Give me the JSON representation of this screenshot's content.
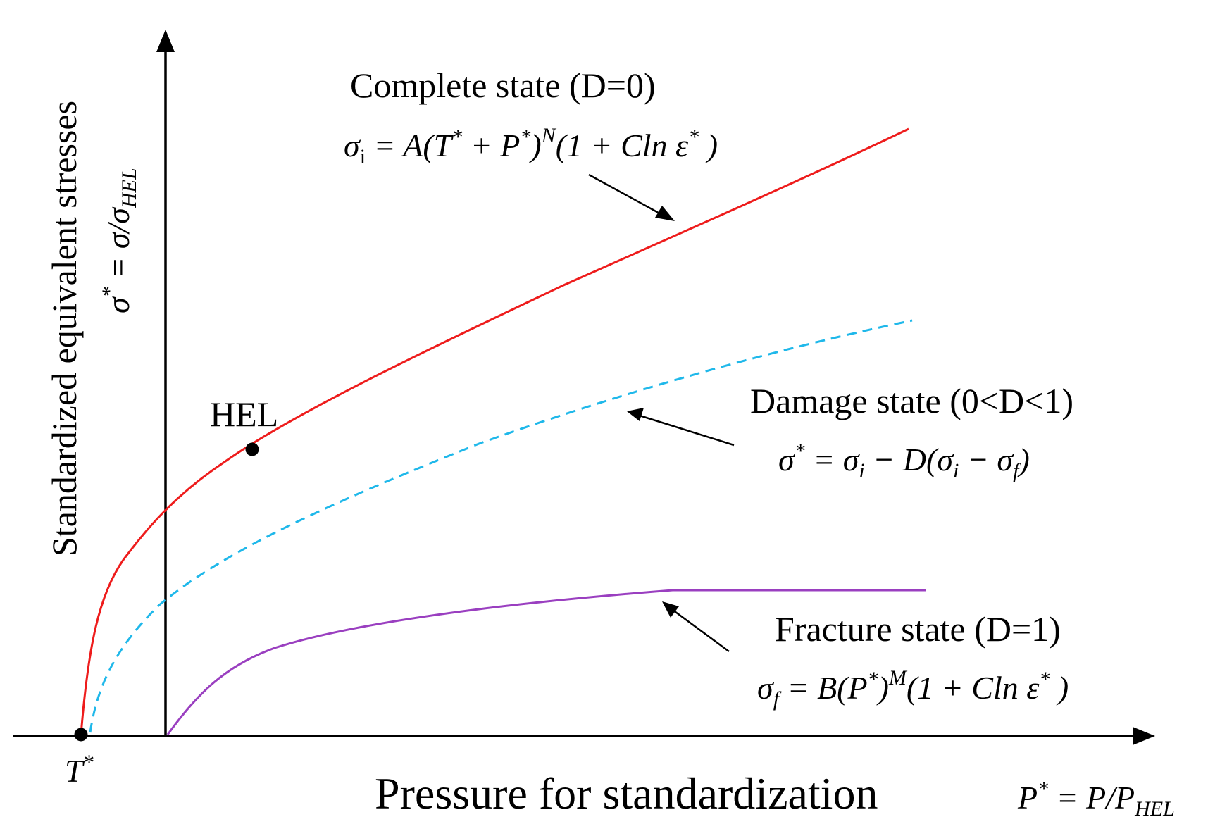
{
  "diagram": {
    "y_axis_title": "Standardized equivalent stresses",
    "y_axis_def": {
      "lhs": "σ",
      "lhs_sup": "*",
      "op": " = σ/σ",
      "sub": "HEL"
    },
    "x_axis_title": "Pressure for standardization",
    "x_axis_def": {
      "lhs": "P",
      "lhs_sup": "*",
      "op": " = P/P",
      "sub": "HEL"
    },
    "t_star": {
      "base": "T",
      "sup": "*"
    },
    "hel_label": "HEL",
    "states": {
      "complete": {
        "title": "Complete state (D=0)",
        "eq": {
          "a": "σ",
          "a_sub": "i",
          "b": " = A(T",
          "b_sup": "*",
          "c": " + P",
          "c_sup": "*",
          "d": ")",
          "d_sup": "N",
          "e": "(1 + Cln ε",
          "e_sup": "*",
          "f": " )"
        },
        "color": "#ee1c1c"
      },
      "damage": {
        "title": "Damage state (0<D<1)",
        "eq": {
          "a": "σ",
          "a_sup": "*",
          "b": " = σ",
          "b_sub": "i",
          "c": " − D(σ",
          "c_sub": "i",
          "d": " − σ",
          "d_sub": "f",
          "e": ")"
        },
        "color": "#1fb8ea"
      },
      "fracture": {
        "title": "Fracture state (D=1)",
        "eq": {
          "a": "σ",
          "a_sub": "f",
          "b": " = B(P",
          "b_sup": "*",
          "c": ")",
          "c_sup": "M",
          "d": "(1 + Cln ε",
          "d_sup": "*",
          "e": " )"
        },
        "color": "#9a3fc0"
      }
    },
    "colors": {
      "axis": "#000000",
      "arrow": "#000000"
    }
  }
}
